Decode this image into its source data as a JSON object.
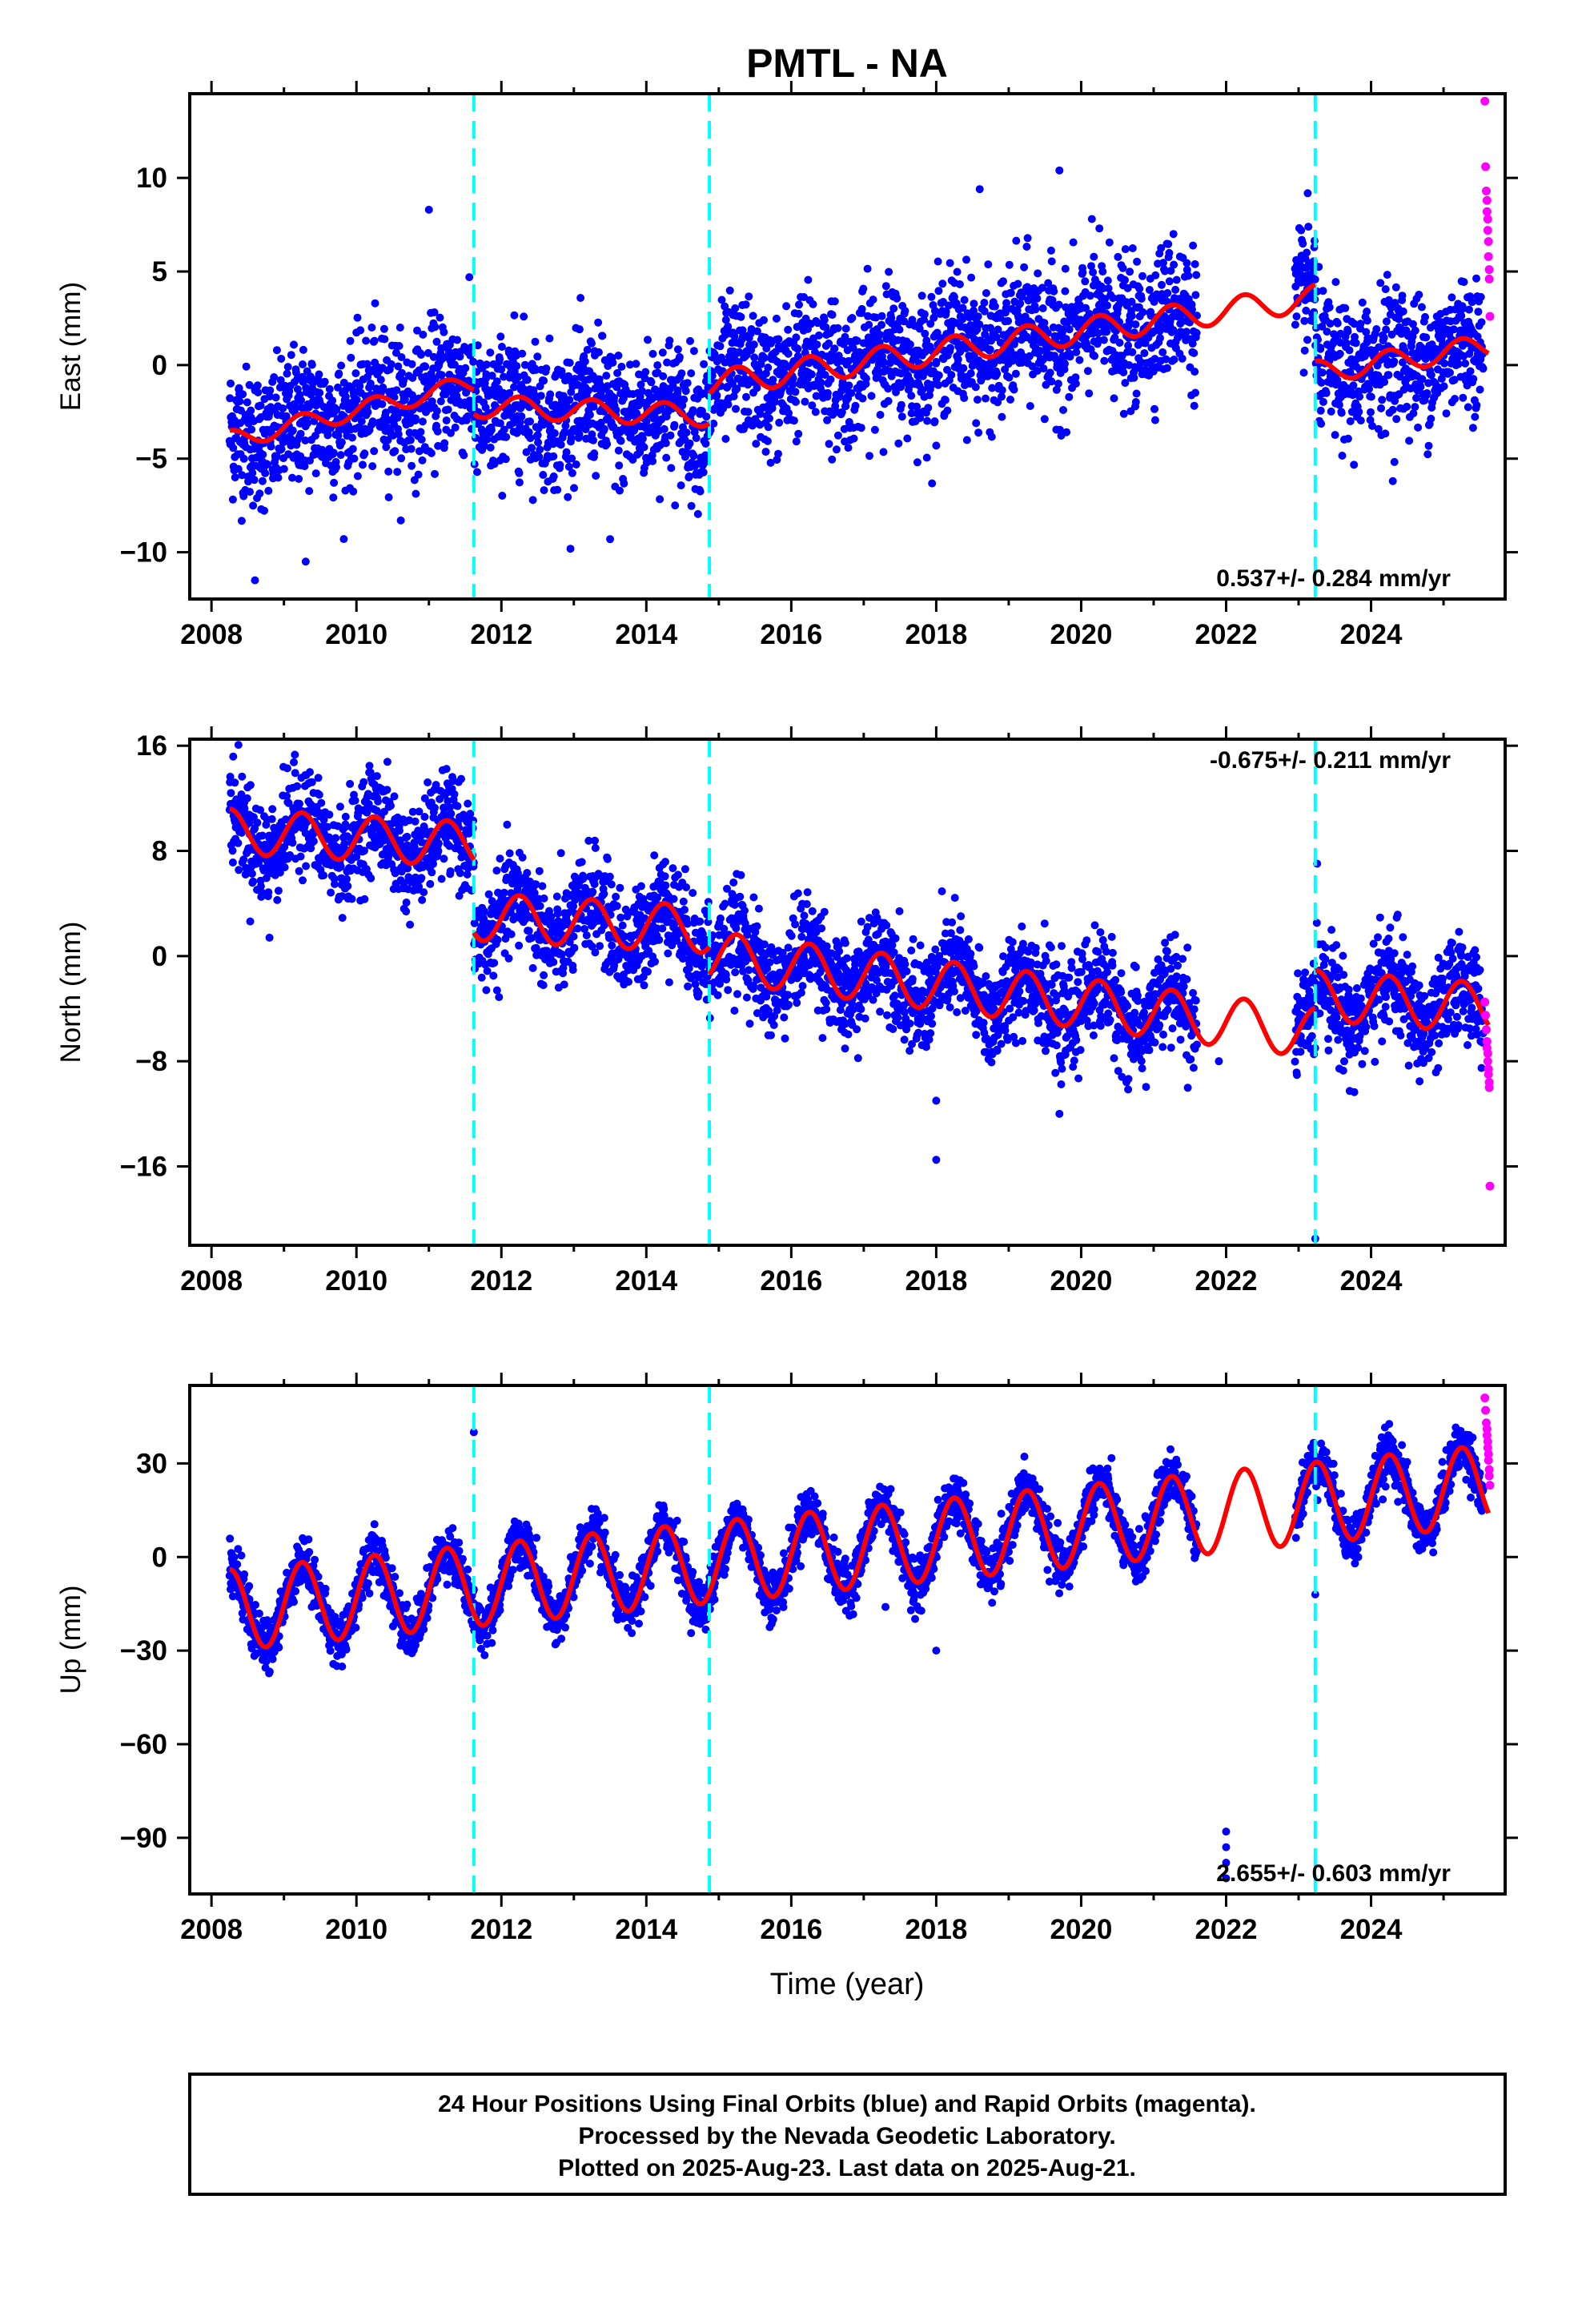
{
  "title": "PMTL - NA",
  "x_axis_label": "Time (year)",
  "footer": {
    "line1": "24 Hour Positions Using Final Orbits (blue) and Rapid Orbits (magenta).",
    "line2": "Processed by the Nevada Geodetic Laboratory.",
    "line3": "Plotted on 2025-Aug-23. Last data on 2025-Aug-21."
  },
  "colors": {
    "final_orbits": "#0000ff",
    "rapid_orbits": "#ff00ff",
    "model_fit": "#ff0000",
    "equipment_change": "#00ffff",
    "axes": "#000000"
  },
  "chart_data": [
    {
      "type": "scatter",
      "component": "East",
      "ylabel": "East (mm)",
      "xlim": [
        2007.7,
        2025.85
      ],
      "ylim": [
        -12.5,
        14.5
      ],
      "xticks": [
        2008,
        2010,
        2012,
        2014,
        2016,
        2018,
        2020,
        2022,
        2024
      ],
      "yticks": [
        -10,
        -5,
        0,
        5,
        10
      ],
      "rate_text": "0.537+/- 0.284 mm/yr",
      "rate_position": "bottom-right",
      "steps": [
        2011.62,
        2014.87,
        2023.23
      ],
      "model": {
        "segments": [
          {
            "x0": 2008.25,
            "x1": 2011.62,
            "y0": -4.0,
            "slope": 0.9,
            "amp": 0.5,
            "phase": 0.0
          },
          {
            "x0": 2011.62,
            "x1": 2014.87,
            "y0": -2.2,
            "slope": -0.15,
            "amp": 0.6,
            "phase": 0.0
          },
          {
            "x0": 2014.87,
            "x1": 2023.23,
            "y0": -1.0,
            "slope": 0.55,
            "amp": 0.7,
            "phase": 0.0
          },
          {
            "x0": 2023.23,
            "x1": 2025.62,
            "y0": -0.4,
            "slope": 0.6,
            "amp": 0.6,
            "phase": 0.0
          }
        ]
      },
      "observations": {
        "ranges": [
          [
            2008.25,
            2021.6
          ],
          [
            2022.95,
            2025.55
          ]
        ],
        "noise": 1.8,
        "outliers": [
          {
            "x": 2008.6,
            "y": -11.5
          },
          {
            "x": 2009.3,
            "y": -10.5
          },
          {
            "x": 2011.0,
            "y": 8.3
          },
          {
            "x": 2013.5,
            "y": -9.3
          },
          {
            "x": 2018.6,
            "y": 9.4
          },
          {
            "x": 2019.7,
            "y": 10.4
          },
          {
            "x": 2018.0,
            "y": -4.3
          },
          {
            "x": 2024.3,
            "y": -6.2
          }
        ]
      },
      "rapid": {
        "x": [
          2025.57,
          2025.58,
          2025.59,
          2025.6,
          2025.6,
          2025.61,
          2025.61,
          2025.62,
          2025.62,
          2025.63,
          2025.63,
          2025.64
        ],
        "y": [
          14.1,
          10.6,
          9.3,
          8.8,
          8.2,
          7.8,
          7.2,
          6.6,
          5.8,
          5.1,
          4.6,
          2.6
        ]
      }
    },
    {
      "type": "scatter",
      "component": "North",
      "ylabel": "North (mm)",
      "xlim": [
        2007.7,
        2025.85
      ],
      "ylim": [
        -22.0,
        16.5
      ],
      "xticks": [
        2008,
        2010,
        2012,
        2014,
        2016,
        2018,
        2020,
        2022,
        2024
      ],
      "yticks": [
        -16,
        -8,
        0,
        8,
        16
      ],
      "rate_text": "-0.675+/- 0.211 mm/yr",
      "rate_position": "top-right",
      "steps": [
        2011.62,
        2014.87,
        2023.23
      ],
      "model": {
        "segments": [
          {
            "x0": 2008.25,
            "x1": 2011.62,
            "y0": 9.5,
            "slope": -0.3,
            "amp": 1.7,
            "phase": 0.0
          },
          {
            "x0": 2011.62,
            "x1": 2014.87,
            "y0": 3.0,
            "slope": -0.3,
            "amp": 1.8,
            "phase": 0.0
          },
          {
            "x0": 2014.87,
            "x1": 2023.23,
            "y0": 0.0,
            "slope": -0.7,
            "amp": 1.9,
            "phase": 0.0
          },
          {
            "x0": 2023.23,
            "x1": 2025.62,
            "y0": -3.0,
            "slope": -0.4,
            "amp": 1.9,
            "phase": 0.0
          }
        ]
      },
      "observations": {
        "ranges": [
          [
            2008.25,
            2021.6
          ],
          [
            2022.95,
            2025.55
          ]
        ],
        "noise": 1.9,
        "outliers": [
          {
            "x": 2008.8,
            "y": 1.4
          },
          {
            "x": 2018.0,
            "y": -15.5
          },
          {
            "x": 2018.0,
            "y": -11.0
          },
          {
            "x": 2019.7,
            "y": -12.0
          },
          {
            "x": 2023.23,
            "y": -21.5
          },
          {
            "x": 2021.9,
            "y": -8.0
          }
        ]
      },
      "rapid": {
        "x": [
          2025.57,
          2025.58,
          2025.59,
          2025.6,
          2025.6,
          2025.61,
          2025.61,
          2025.62,
          2025.62,
          2025.63,
          2025.63,
          2025.64
        ],
        "y": [
          -3.5,
          -4.5,
          -5.6,
          -6.5,
          -7.0,
          -7.4,
          -8.0,
          -8.6,
          -9.0,
          -9.6,
          -10.0,
          -17.5
        ]
      }
    },
    {
      "type": "scatter",
      "component": "Up",
      "ylabel": "Up (mm)",
      "xlim": [
        2007.7,
        2025.85
      ],
      "ylim": [
        -108,
        55
      ],
      "xticks": [
        2008,
        2010,
        2012,
        2014,
        2016,
        2018,
        2020,
        2022,
        2024
      ],
      "yticks": [
        -90,
        -60,
        -30,
        0,
        30
      ],
      "rate_text": "2.655+/- 0.603 mm/yr",
      "rate_position": "bottom-right",
      "steps": [
        2011.62,
        2014.87,
        2023.23
      ],
      "model": {
        "segments": [
          {
            "x0": 2008.25,
            "x1": 2025.62,
            "y0": -17.0,
            "slope": 2.3,
            "amp": 13.0,
            "phase": 0.0
          }
        ]
      },
      "observations": {
        "ranges": [
          [
            2008.25,
            2021.6
          ],
          [
            2022.95,
            2025.55
          ]
        ],
        "noise": 4.0,
        "outliers": [
          {
            "x": 2011.62,
            "y": 40
          },
          {
            "x": 2018.0,
            "y": -30
          },
          {
            "x": 2023.23,
            "y": -12
          },
          {
            "x": 2022.0,
            "y": -88
          },
          {
            "x": 2022.0,
            "y": -93
          },
          {
            "x": 2022.0,
            "y": -98
          },
          {
            "x": 2022.0,
            "y": -103
          },
          {
            "x": 2017.3,
            "y": -16
          }
        ]
      },
      "rapid": {
        "x": [
          2025.57,
          2025.58,
          2025.59,
          2025.6,
          2025.6,
          2025.61,
          2025.61,
          2025.62,
          2025.62,
          2025.63,
          2025.63,
          2025.64
        ],
        "y": [
          51,
          47,
          43,
          41,
          39,
          37,
          35,
          33,
          31,
          28,
          26,
          23
        ]
      }
    }
  ]
}
